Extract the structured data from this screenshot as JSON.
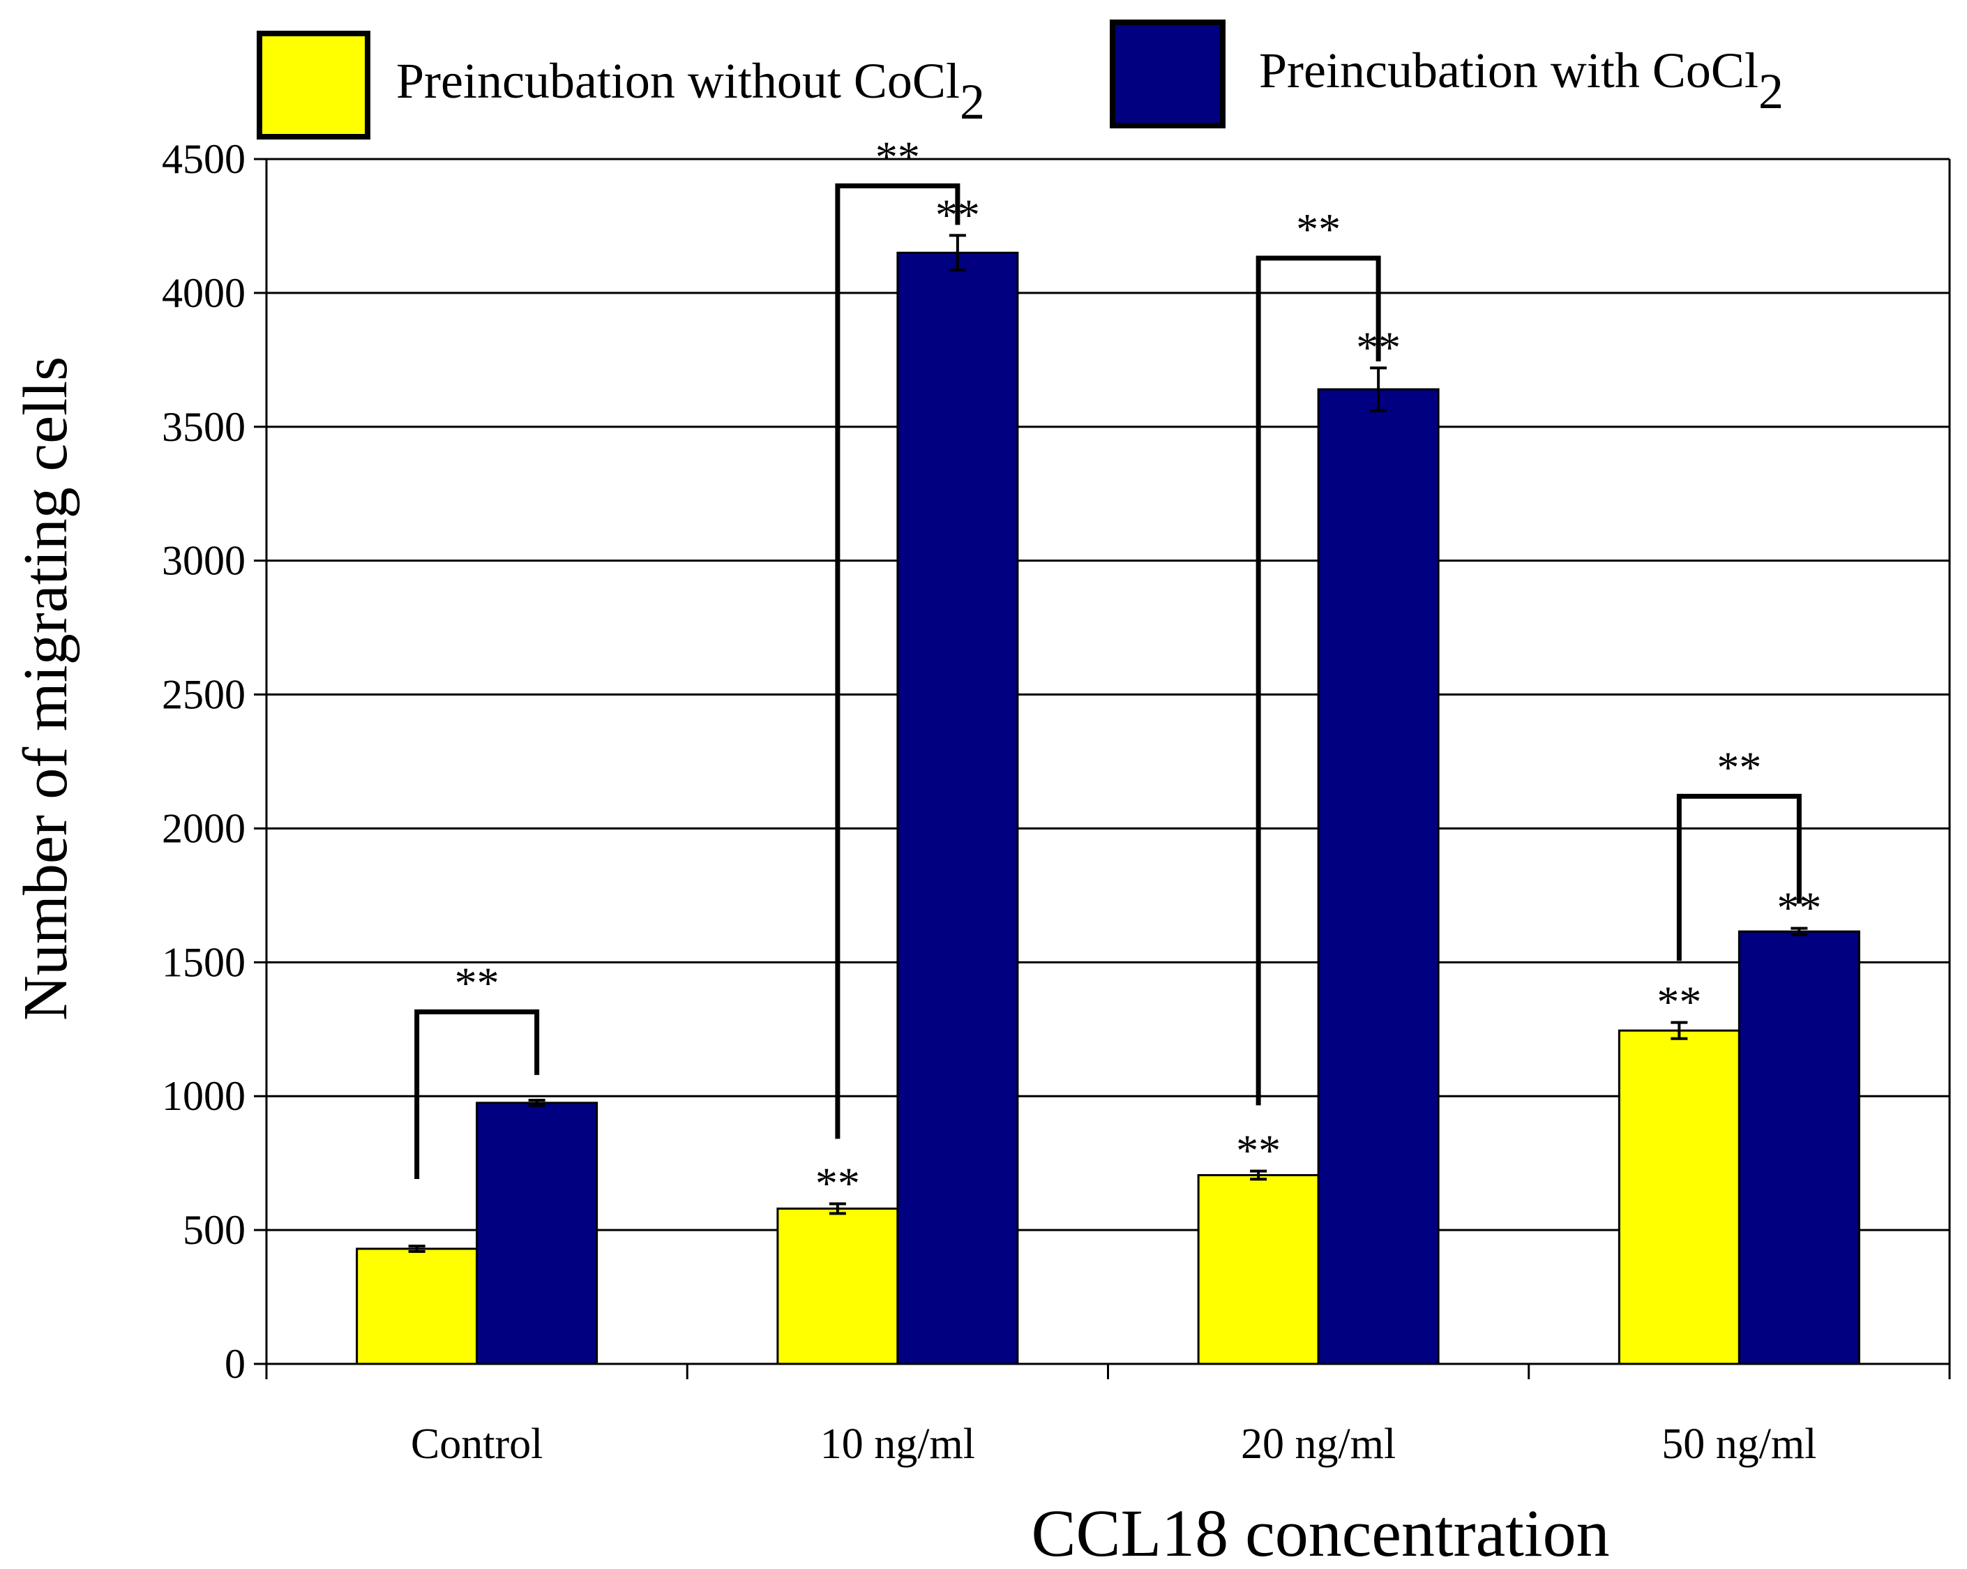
{
  "chart_data": {
    "type": "bar",
    "title": "",
    "xlabel": "CCL18 concentration",
    "ylabel": "Number of migrating cells",
    "ylim": [
      0,
      4500
    ],
    "yticks": [
      "0",
      "500",
      "1000",
      "1500",
      "2000",
      "2500",
      "3000",
      "3500",
      "4000",
      "4500"
    ],
    "grid": true,
    "legend_position": "top",
    "categories": [
      "Control",
      "10 ng/ml",
      "20 ng/ml",
      "50 ng/ml"
    ],
    "series": [
      {
        "name": "Preincubation without CoCl",
        "name_subscript": "2",
        "color": "#ffff00",
        "values": [
          430,
          580,
          705,
          1245
        ],
        "errors": [
          10,
          18,
          15,
          30
        ],
        "significance": [
          "",
          "**",
          "**",
          "**"
        ]
      },
      {
        "name": "Preincubation with CoCl",
        "name_subscript": "2",
        "color": "#000080",
        "values": [
          975,
          4150,
          3640,
          1615
        ],
        "errors": [
          10,
          65,
          80,
          12
        ],
        "significance": [
          "",
          "**",
          "**",
          "**"
        ]
      }
    ],
    "comparisons": [
      {
        "category_index": 0,
        "label": "**",
        "top_value": 1315
      },
      {
        "category_index": 1,
        "label": "**",
        "top_value": 4400
      },
      {
        "category_index": 2,
        "label": "**",
        "top_value": 4130
      },
      {
        "category_index": 3,
        "label": "**",
        "top_value": 2120
      }
    ]
  }
}
